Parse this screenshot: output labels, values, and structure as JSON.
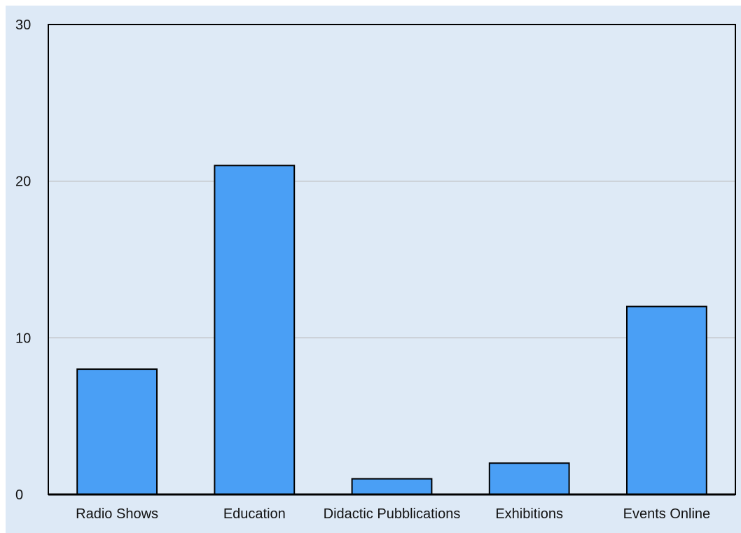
{
  "chart_data": {
    "type": "bar",
    "title": "",
    "xlabel": "",
    "ylabel": "",
    "categories": [
      "Radio Shows",
      "Education",
      "Didactic Pubblications",
      "Exhibitions",
      "Events Online"
    ],
    "values": [
      8,
      21,
      1,
      2,
      12
    ],
    "ylim": [
      0,
      30
    ],
    "yticks": [
      0,
      10,
      20,
      30
    ],
    "grid": true,
    "legend": "none",
    "colors": {
      "bar": "#4a9ff5",
      "bar_edge": "#000000",
      "plot_bg": "#deeaf6",
      "grid": "#b9b9b9"
    }
  }
}
